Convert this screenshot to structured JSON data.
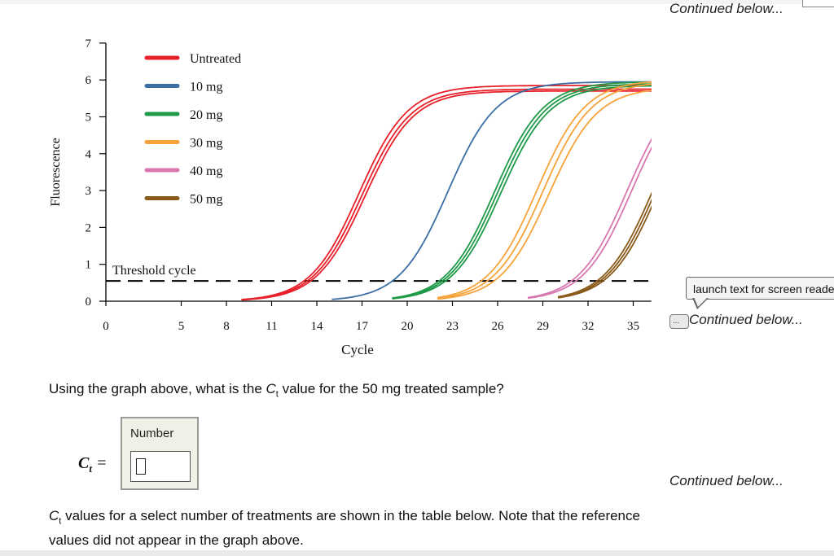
{
  "continued_labels": {
    "top": "Continued below...",
    "middle": "Continued below...",
    "lower": "Continued below..."
  },
  "tooltip": {
    "text": "launch text for screen reader"
  },
  "icons": {
    "speech": "speech-bubble-icon",
    "speech_glyph": "..."
  },
  "question": {
    "prefix": "Using the graph above, what is the ",
    "symbol": "C",
    "subscript": "t",
    "suffix": " value for the 50 mg treated sample?"
  },
  "answer": {
    "label_symbol": "C",
    "label_subscript": "t",
    "label_equals": " =",
    "box_label": "Number",
    "input_value": "",
    "input_placeholder": ""
  },
  "footer": {
    "symbol": "C",
    "subscript": "t",
    "line1_rest": " values for a select number of treatments are shown in the table below. Note that the reference",
    "line2": "values did not appear in the graph above."
  },
  "chart_data": {
    "type": "line",
    "xlabel": "Cycle",
    "ylabel": "Fluorescence",
    "xlim": [
      0,
      37
    ],
    "ylim": [
      0,
      7
    ],
    "x_ticks": [
      0,
      5,
      8,
      11,
      14,
      17,
      20,
      23,
      26,
      29,
      32,
      35
    ],
    "y_ticks": [
      0,
      1,
      2,
      3,
      4,
      5,
      6,
      7
    ],
    "threshold": {
      "value": 0.55,
      "label": "Threshold cycle"
    },
    "legend_position": "top-left",
    "series": [
      {
        "name": "Untreated",
        "color": "#e8202a",
        "replicates": [
          {
            "midpoint": 16.8,
            "plateau": 5.85,
            "start": 9
          },
          {
            "midpoint": 17.0,
            "plateau": 5.75,
            "start": 9
          },
          {
            "midpoint": 17.2,
            "plateau": 5.7,
            "start": 9
          }
        ]
      },
      {
        "name": "10 mg",
        "color": "#3a6ea5",
        "replicates": [
          {
            "midpoint": 22.7,
            "plateau": 5.95,
            "start": 15
          }
        ]
      },
      {
        "name": "20 mg",
        "color": "#1f9a48",
        "replicates": [
          {
            "midpoint": 25.8,
            "plateau": 5.95,
            "start": 19
          },
          {
            "midpoint": 26.0,
            "plateau": 5.9,
            "start": 19
          },
          {
            "midpoint": 26.2,
            "plateau": 5.85,
            "start": 19
          }
        ]
      },
      {
        "name": "30 mg",
        "color": "#f7a23a",
        "replicates": [
          {
            "midpoint": 28.6,
            "plateau": 6.0,
            "start": 22
          },
          {
            "midpoint": 29.0,
            "plateau": 5.95,
            "start": 22
          },
          {
            "midpoint": 29.4,
            "plateau": 5.8,
            "start": 22
          }
        ]
      },
      {
        "name": "40 mg",
        "color": "#d877b0",
        "replicates": [
          {
            "midpoint": 34.6,
            "plateau": 6.0,
            "start": 28
          },
          {
            "midpoint": 34.9,
            "plateau": 6.0,
            "start": 28
          }
        ]
      },
      {
        "name": "50 mg",
        "color": "#8a5a1a",
        "replicates": [
          {
            "midpoint": 36.3,
            "plateau": 6.0,
            "start": 30
          },
          {
            "midpoint": 36.5,
            "plateau": 6.0,
            "start": 30
          },
          {
            "midpoint": 36.7,
            "plateau": 6.0,
            "start": 30
          }
        ]
      }
    ],
    "x_max_drawn": 36.6
  }
}
